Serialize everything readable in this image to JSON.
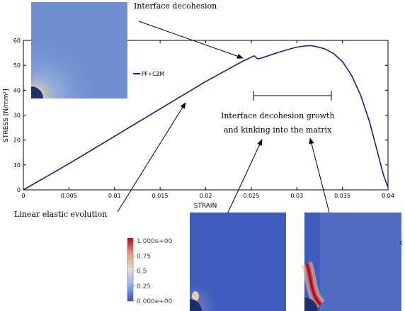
{
  "chart_data": {
    "type": "line",
    "title": "",
    "xlabel": "STRAIN",
    "ylabel": "STRESS [N/mm²]",
    "xlim": [
      0,
      0.04
    ],
    "ylim": [
      0,
      60
    ],
    "xticks": [
      0,
      0.005,
      0.01,
      0.015,
      0.02,
      0.025,
      0.03,
      0.035,
      0.04
    ],
    "xtick_labels": [
      "0",
      "0.005",
      "0.01",
      "0.015",
      "0.02",
      "0.025",
      "0.03",
      "0.035",
      "0.04"
    ],
    "yticks": [
      0,
      10,
      20,
      30,
      40,
      50,
      60
    ],
    "ytick_labels": [
      "0",
      "10",
      "20",
      "30",
      "40",
      "50",
      "60"
    ],
    "grid": false,
    "legend": "upper-left-inside",
    "series": [
      {
        "name": "PF+CZM",
        "color": "#1a1a8c",
        "x": [
          0,
          0.005,
          0.01,
          0.015,
          0.02,
          0.024,
          0.0253,
          0.0257,
          0.026,
          0.027,
          0.028,
          0.029,
          0.03,
          0.031,
          0.0315,
          0.032,
          0.033,
          0.034,
          0.035,
          0.036,
          0.037,
          0.038,
          0.039,
          0.0395,
          0.04
        ],
        "y": [
          0,
          10.5,
          21.5,
          32.5,
          43.5,
          51.5,
          53.8,
          52.6,
          52.8,
          54.0,
          55.2,
          56.3,
          57.3,
          57.8,
          57.9,
          57.6,
          56.7,
          54.8,
          51.5,
          46.0,
          38.0,
          27.0,
          13.0,
          6.0,
          1.0
        ]
      }
    ]
  },
  "annotations": {
    "decohesion": "Interface decohesion",
    "growth_line1": "Interface decohesion growth",
    "growth_line2": "and kinking into the matrix",
    "linear": "Linear elastic evolution"
  },
  "colorbar": {
    "labels": [
      "1.000e+00",
      "0.75",
      "0.5",
      "0.25",
      "0.000e+00"
    ],
    "values": [
      1.0,
      0.75,
      0.5,
      0.25,
      0.0
    ],
    "colors": [
      "#b40426",
      "#f4987a",
      "#dddddd",
      "#8db0fe",
      "#3b4cc0"
    ]
  },
  "edge_mark": "c"
}
